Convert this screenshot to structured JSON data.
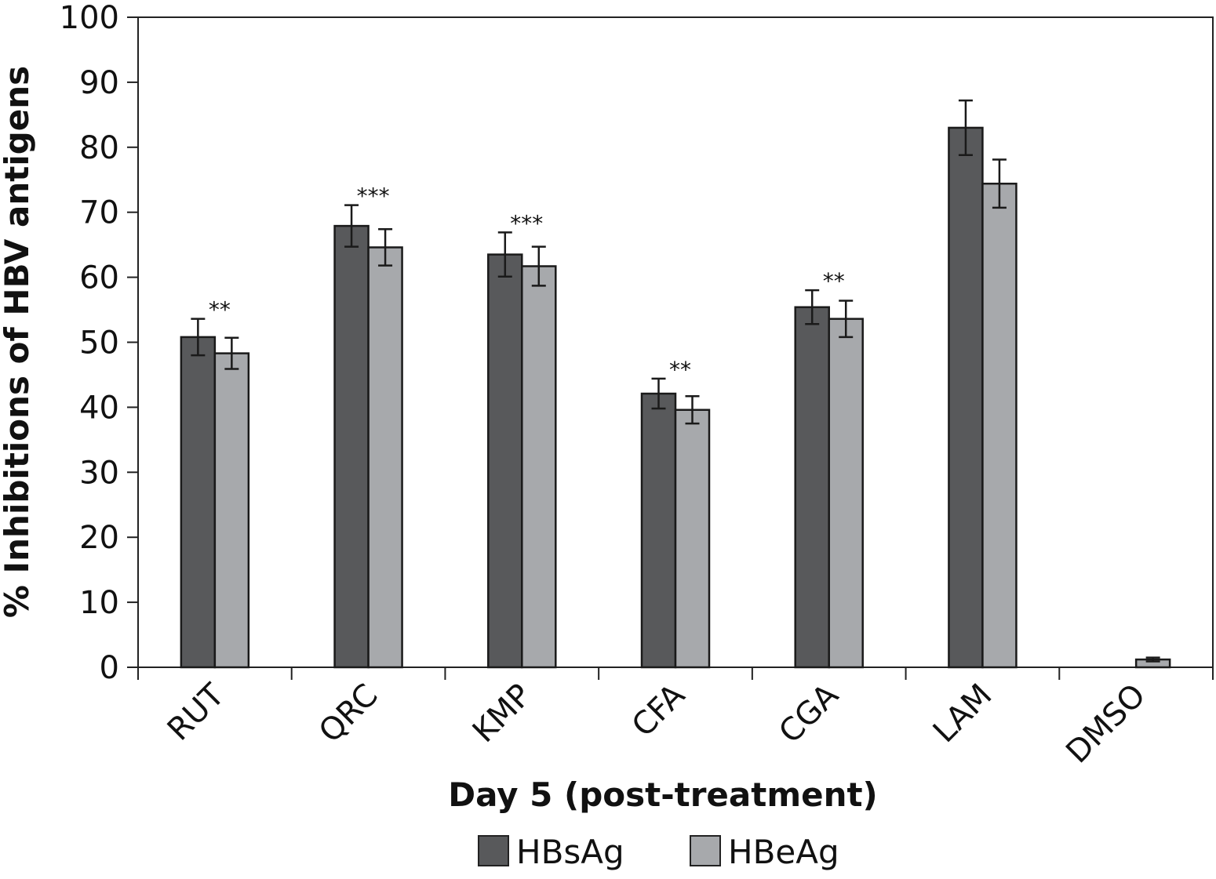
{
  "chart_data": {
    "type": "bar",
    "title": "",
    "xlabel": "Day 5 (post-treatment)",
    "ylabel": "% Inhibitions of HBV antigens",
    "ylim": [
      0,
      100
    ],
    "yticks": [
      0,
      10,
      20,
      30,
      40,
      50,
      60,
      70,
      80,
      90,
      100
    ],
    "categories": [
      "RUT",
      "QRC",
      "KMP",
      "CFA",
      "CGA",
      "LAM",
      "DMSO"
    ],
    "series": [
      {
        "name": "HBsAg",
        "color": "#58595b",
        "values": [
          50.8,
          67.9,
          63.5,
          42.1,
          55.4,
          83.0,
          null
        ],
        "errors": [
          2.8,
          3.2,
          3.4,
          2.3,
          2.6,
          4.2,
          null
        ]
      },
      {
        "name": "HBeAg",
        "color": "#a7a9ac",
        "values": [
          48.3,
          64.6,
          61.7,
          39.6,
          53.6,
          74.4,
          1.2
        ],
        "errors": [
          2.4,
          2.8,
          3.0,
          2.1,
          2.8,
          3.7,
          0.3
        ]
      }
    ],
    "significance": [
      "**",
      "***",
      "***",
      "**",
      "**",
      "",
      ""
    ],
    "grid": false,
    "legend_position": "bottom-center"
  }
}
